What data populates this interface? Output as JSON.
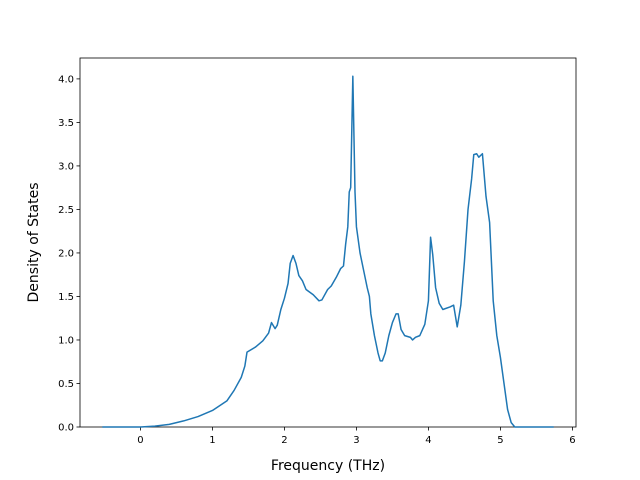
{
  "chart_data": {
    "type": "line",
    "x_label": "Frequency (THz)",
    "y_label": "Density of States",
    "x": [
      -0.53,
      0,
      0.2,
      0.4,
      0.6,
      0.8,
      1.0,
      1.2,
      1.3,
      1.4,
      1.45,
      1.48,
      1.6,
      1.7,
      1.78,
      1.82,
      1.87,
      1.9,
      1.95,
      2.0,
      2.05,
      2.08,
      2.12,
      2.16,
      2.2,
      2.25,
      2.3,
      2.4,
      2.48,
      2.52,
      2.6,
      2.65,
      2.72,
      2.78,
      2.82,
      2.85,
      2.88,
      2.9,
      2.92,
      2.95,
      2.98,
      3.0,
      3.05,
      3.1,
      3.15,
      3.18,
      3.2,
      3.25,
      3.3,
      3.33,
      3.36,
      3.4,
      3.45,
      3.5,
      3.55,
      3.58,
      3.62,
      3.67,
      3.75,
      3.78,
      3.82,
      3.88,
      3.95,
      4.0,
      4.03,
      4.06,
      4.1,
      4.15,
      4.2,
      4.3,
      4.35,
      4.4,
      4.45,
      4.5,
      4.55,
      4.6,
      4.63,
      4.67,
      4.7,
      4.75,
      4.8,
      4.85,
      4.9,
      4.95,
      5.0,
      5.05,
      5.1,
      5.15,
      5.2,
      5.74
    ],
    "series": [
      {
        "name": "DOS",
        "color": "#1f77b4",
        "values": [
          0,
          0,
          0.01,
          0.03,
          0.07,
          0.12,
          0.19,
          0.3,
          0.42,
          0.57,
          0.7,
          0.86,
          0.92,
          0.99,
          1.08,
          1.2,
          1.13,
          1.17,
          1.35,
          1.48,
          1.65,
          1.88,
          1.97,
          1.88,
          1.74,
          1.68,
          1.58,
          1.52,
          1.45,
          1.46,
          1.58,
          1.62,
          1.72,
          1.82,
          1.85,
          2.1,
          2.3,
          2.7,
          2.75,
          4.03,
          2.7,
          2.3,
          2.0,
          1.8,
          1.6,
          1.5,
          1.3,
          1.05,
          0.85,
          0.76,
          0.76,
          0.85,
          1.05,
          1.2,
          1.3,
          1.3,
          1.12,
          1.05,
          1.03,
          1.0,
          1.03,
          1.05,
          1.18,
          1.45,
          2.18,
          1.98,
          1.6,
          1.42,
          1.35,
          1.38,
          1.4,
          1.15,
          1.4,
          1.9,
          2.5,
          2.85,
          3.13,
          3.14,
          3.1,
          3.14,
          2.65,
          2.35,
          1.45,
          1.05,
          0.8,
          0.5,
          0.2,
          0.05,
          0,
          0
        ]
      }
    ],
    "xlim": [
      -0.84,
      6.05
    ],
    "ylim": [
      0,
      4.24
    ],
    "xticks": [
      0,
      1,
      2,
      3,
      4,
      5,
      6
    ],
    "yticks": [
      {
        "value": 0,
        "label": "0.0"
      },
      {
        "value": 0.5,
        "label": "0.5"
      },
      {
        "value": 1,
        "label": "1.0"
      },
      {
        "value": 1.5,
        "label": "1.5"
      },
      {
        "value": 2,
        "label": "2.0"
      },
      {
        "value": 2.5,
        "label": "2.5"
      },
      {
        "value": 3,
        "label": "3.0"
      },
      {
        "value": 3.5,
        "label": "3.5"
      },
      {
        "value": 4,
        "label": "4.0"
      }
    ],
    "grid": false
  }
}
